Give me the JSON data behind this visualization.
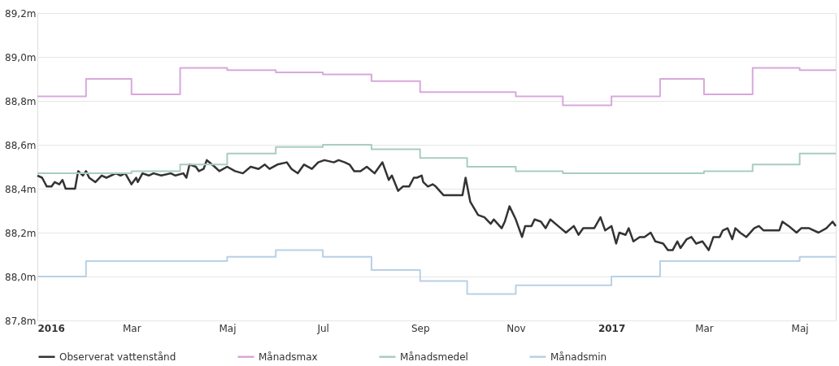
{
  "chart_data": {
    "type": "line",
    "xlim": [
      "2016-01-01",
      "2017-05-24"
    ],
    "xticks": [
      {
        "value": "2016-01-01",
        "label": "2016"
      },
      {
        "value": "2016-03-01",
        "label": "Mar"
      },
      {
        "value": "2016-05-01",
        "label": "Maj"
      },
      {
        "value": "2016-07-01",
        "label": "Jul"
      },
      {
        "value": "2016-09-01",
        "label": "Sep"
      },
      {
        "value": "2016-11-01",
        "label": "Nov"
      },
      {
        "value": "2017-01-01",
        "label": "2017"
      },
      {
        "value": "2017-03-01",
        "label": "Mar"
      },
      {
        "value": "2017-05-01",
        "label": "Maj"
      }
    ],
    "ylim": [
      87.8,
      89.2
    ],
    "yticks": [
      {
        "value": 87.8,
        "label": "87,8m"
      },
      {
        "value": 88.0,
        "label": "88,0m"
      },
      {
        "value": 88.2,
        "label": "88,2m"
      },
      {
        "value": 88.4,
        "label": "88,4m"
      },
      {
        "value": 88.6,
        "label": "88,6m"
      },
      {
        "value": 88.8,
        "label": "88,8m"
      },
      {
        "value": 89.0,
        "label": "89,0m"
      },
      {
        "value": 89.2,
        "label": "89,2m"
      }
    ],
    "grid": "y",
    "legend": "bottom",
    "marker": "none",
    "line_style": "solid",
    "series": [
      {
        "name": "Observerat vattenstånd",
        "color": "#333333",
        "type": "line",
        "x": [
          "2016-01-01",
          "2016-01-04",
          "2016-01-07",
          "2016-01-10",
          "2016-01-12",
          "2016-01-15",
          "2016-01-17",
          "2016-01-19",
          "2016-01-22",
          "2016-01-25",
          "2016-01-27",
          "2016-01-30",
          "2016-02-01",
          "2016-02-03",
          "2016-02-07",
          "2016-02-11",
          "2016-02-14",
          "2016-02-20",
          "2016-02-23",
          "2016-02-26",
          "2016-03-01",
          "2016-03-04",
          "2016-03-05",
          "2016-03-08",
          "2016-03-12",
          "2016-03-15",
          "2016-03-20",
          "2016-03-26",
          "2016-03-29",
          "2016-04-03",
          "2016-04-05",
          "2016-04-07",
          "2016-04-11",
          "2016-04-13",
          "2016-04-16",
          "2016-04-18",
          "2016-04-23",
          "2016-04-26",
          "2016-05-01",
          "2016-05-06",
          "2016-05-11",
          "2016-05-16",
          "2016-05-21",
          "2016-05-25",
          "2016-05-28",
          "2016-06-02",
          "2016-06-08",
          "2016-06-11",
          "2016-06-15",
          "2016-06-19",
          "2016-06-24",
          "2016-06-28",
          "2016-07-02",
          "2016-07-08",
          "2016-07-11",
          "2016-07-15",
          "2016-07-18",
          "2016-07-21",
          "2016-07-25",
          "2016-07-29",
          "2016-08-03",
          "2016-08-08",
          "2016-08-12",
          "2016-08-14",
          "2016-08-18",
          "2016-08-21",
          "2016-08-25",
          "2016-08-28",
          "2016-08-30",
          "2016-09-02",
          "2016-09-03",
          "2016-09-06",
          "2016-09-09",
          "2016-09-11",
          "2016-09-16",
          "2016-09-22",
          "2016-09-28",
          "2016-09-30",
          "2016-10-03",
          "2016-10-08",
          "2016-10-12",
          "2016-10-16",
          "2016-10-18",
          "2016-10-23",
          "2016-10-25",
          "2016-10-28",
          "2016-11-01",
          "2016-11-05",
          "2016-11-07",
          "2016-11-11",
          "2016-11-13",
          "2016-11-17",
          "2016-11-20",
          "2016-11-23",
          "2016-11-28",
          "2016-12-03",
          "2016-12-08",
          "2016-12-11",
          "2016-12-14",
          "2016-12-21",
          "2016-12-25",
          "2016-12-28",
          "2017-01-01",
          "2017-01-04",
          "2017-01-06",
          "2017-01-10",
          "2017-01-12",
          "2017-01-15",
          "2017-01-19",
          "2017-01-22",
          "2017-01-26",
          "2017-01-29",
          "2017-02-03",
          "2017-02-06",
          "2017-02-09",
          "2017-02-12",
          "2017-02-14",
          "2017-02-18",
          "2017-02-21",
          "2017-02-24",
          "2017-02-28",
          "2017-03-04",
          "2017-03-07",
          "2017-03-11",
          "2017-03-13",
          "2017-03-16",
          "2017-03-19",
          "2017-03-21",
          "2017-03-24",
          "2017-03-28",
          "2017-04-02",
          "2017-04-05",
          "2017-04-08",
          "2017-04-13",
          "2017-04-18",
          "2017-04-20",
          "2017-04-24",
          "2017-04-29",
          "2017-05-02",
          "2017-05-07",
          "2017-05-13",
          "2017-05-18",
          "2017-05-22",
          "2017-05-24"
        ],
        "values": [
          88.46,
          88.45,
          88.41,
          88.41,
          88.43,
          88.42,
          88.44,
          88.4,
          88.4,
          88.4,
          88.48,
          88.46,
          88.48,
          88.45,
          88.43,
          88.46,
          88.45,
          88.47,
          88.46,
          88.47,
          88.42,
          88.45,
          88.43,
          88.47,
          88.46,
          88.47,
          88.46,
          88.47,
          88.46,
          88.47,
          88.45,
          88.51,
          88.5,
          88.48,
          88.49,
          88.53,
          88.5,
          88.48,
          88.5,
          88.48,
          88.47,
          88.5,
          88.49,
          88.51,
          88.49,
          88.51,
          88.52,
          88.49,
          88.47,
          88.51,
          88.49,
          88.52,
          88.53,
          88.52,
          88.53,
          88.52,
          88.51,
          88.48,
          88.48,
          88.5,
          88.47,
          88.52,
          88.44,
          88.46,
          88.39,
          88.41,
          88.41,
          88.45,
          88.45,
          88.46,
          88.43,
          88.41,
          88.42,
          88.41,
          88.37,
          88.37,
          88.37,
          88.45,
          88.34,
          88.28,
          88.27,
          88.24,
          88.26,
          88.22,
          88.25,
          88.32,
          88.26,
          88.18,
          88.23,
          88.23,
          88.26,
          88.25,
          88.22,
          88.26,
          88.23,
          88.2,
          88.23,
          88.19,
          88.22,
          88.22,
          88.27,
          88.21,
          88.23,
          88.15,
          88.2,
          88.19,
          88.22,
          88.16,
          88.18,
          88.18,
          88.2,
          88.16,
          88.15,
          88.12,
          88.12,
          88.16,
          88.13,
          88.17,
          88.18,
          88.15,
          88.16,
          88.12,
          88.18,
          88.18,
          88.21,
          88.22,
          88.17,
          88.22,
          88.2,
          88.18,
          88.22,
          88.23,
          88.21,
          88.21,
          88.21,
          88.25,
          88.23,
          88.2,
          88.22,
          88.22,
          88.2,
          88.22,
          88.25,
          88.23
        ]
      },
      {
        "name": "Månadsmax",
        "color": "#d8a8dc",
        "type": "step",
        "x": [
          "2016-01-01",
          "2016-02-01",
          "2016-03-01",
          "2016-04-01",
          "2016-05-01",
          "2016-06-01",
          "2016-07-01",
          "2016-08-01",
          "2016-09-01",
          "2016-10-01",
          "2016-11-01",
          "2016-12-01",
          "2017-01-01",
          "2017-02-01",
          "2017-03-01",
          "2017-04-01",
          "2017-05-01",
          "2017-05-24"
        ],
        "values": [
          88.82,
          88.9,
          88.83,
          88.95,
          88.94,
          88.93,
          88.92,
          88.89,
          88.84,
          88.84,
          88.82,
          88.78,
          88.82,
          88.9,
          88.83,
          88.95,
          88.94,
          88.94
        ]
      },
      {
        "name": "Månadsmedel",
        "color": "#a8ccc4",
        "type": "step",
        "x": [
          "2016-01-01",
          "2016-02-01",
          "2016-03-01",
          "2016-04-01",
          "2016-05-01",
          "2016-06-01",
          "2016-07-01",
          "2016-08-01",
          "2016-09-01",
          "2016-10-01",
          "2016-11-01",
          "2016-12-01",
          "2017-01-01",
          "2017-02-01",
          "2017-03-01",
          "2017-04-01",
          "2017-05-01",
          "2017-05-24"
        ],
        "values": [
          88.47,
          88.47,
          88.48,
          88.51,
          88.56,
          88.59,
          88.6,
          88.58,
          88.54,
          88.5,
          88.48,
          88.47,
          88.47,
          88.47,
          88.48,
          88.51,
          88.56,
          88.56
        ]
      },
      {
        "name": "Månadsmin",
        "color": "#b8d0e6",
        "type": "step",
        "x": [
          "2016-01-01",
          "2016-02-01",
          "2016-03-01",
          "2016-04-01",
          "2016-05-01",
          "2016-06-01",
          "2016-07-01",
          "2016-08-01",
          "2016-09-01",
          "2016-10-01",
          "2016-11-01",
          "2016-12-01",
          "2017-01-01",
          "2017-02-01",
          "2017-03-01",
          "2017-04-01",
          "2017-05-01",
          "2017-05-24"
        ],
        "values": [
          88.0,
          88.07,
          88.07,
          88.07,
          88.09,
          88.12,
          88.09,
          88.03,
          87.98,
          87.92,
          87.96,
          87.96,
          88.0,
          88.07,
          88.07,
          88.07,
          88.09,
          88.09
        ]
      }
    ]
  }
}
